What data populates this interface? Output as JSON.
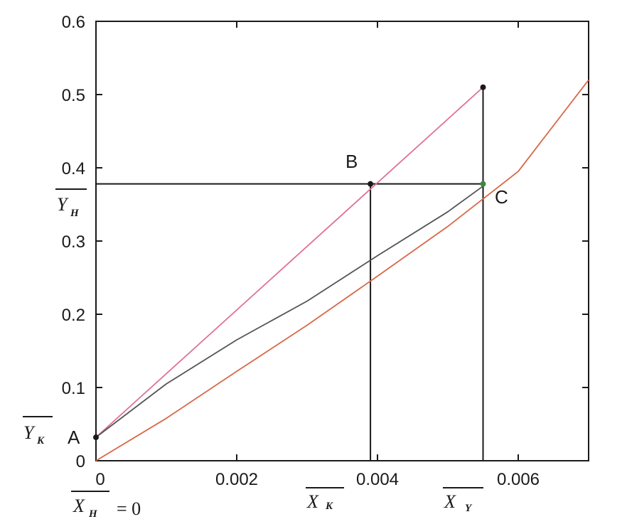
{
  "chart_data": {
    "type": "line",
    "title": "",
    "xlabel": "",
    "ylabel": "",
    "xlim": [
      0,
      0.007
    ],
    "ylim": [
      0,
      0.6
    ],
    "grid": false,
    "x_ticks": [
      {
        "value": 0,
        "label": "0"
      },
      {
        "value": 0.002,
        "label": "0.002"
      },
      {
        "value": 0.004,
        "label": "0.004"
      },
      {
        "value": 0.006,
        "label": "0.006"
      }
    ],
    "y_ticks": [
      {
        "value": 0,
        "label": "0"
      },
      {
        "value": 0.1,
        "label": "0.1"
      },
      {
        "value": 0.2,
        "label": "0.2"
      },
      {
        "value": 0.3,
        "label": "0.3"
      },
      {
        "value": 0.4,
        "label": "0.4"
      },
      {
        "value": 0.5,
        "label": "0.5"
      },
      {
        "value": 0.6,
        "label": "0.6"
      }
    ],
    "series": [
      {
        "color": "#e07098",
        "x": [
          0,
          0.0055
        ],
        "y": [
          0.032,
          0.51
        ]
      },
      {
        "color": "#555555",
        "x": [
          0,
          0.001,
          0.002,
          0.003,
          0.004,
          0.005,
          0.0055
        ],
        "y": [
          0.032,
          0.105,
          0.165,
          0.218,
          0.28,
          0.34,
          0.375
        ]
      },
      {
        "color": "#d86848",
        "x": [
          0,
          0.001,
          0.002,
          0.003,
          0.004,
          0.005,
          0.006,
          0.007
        ],
        "y": [
          0,
          0.058,
          0.122,
          0.185,
          0.252,
          0.32,
          0.395,
          0.52
        ]
      }
    ],
    "points": [
      {
        "label": "A",
        "x": 0,
        "y": 0.032,
        "color": "#1a1a1a"
      },
      {
        "label": "B",
        "x": 0.0039,
        "y": 0.378,
        "color": "#1a1a1a"
      },
      {
        "label": "C",
        "x": 0.0055,
        "y": 0.378,
        "color": "#3a8a3a"
      },
      {
        "label": "",
        "x": 0.0055,
        "y": 0.51,
        "color": "#1a1a1a"
      }
    ],
    "construction_lines": [
      {
        "x": [
          0,
          0.0055
        ],
        "y": [
          0.378,
          0.378
        ]
      },
      {
        "x": [
          0.0039,
          0.0039
        ],
        "y": [
          0.378,
          0
        ]
      },
      {
        "x": [
          0.0055,
          0.0055
        ],
        "y": [
          0.51,
          0
        ]
      }
    ],
    "annotations": {
      "y_h": {
        "main": "Y",
        "sub": "H",
        "value": 0.378
      },
      "y_k": {
        "main": "Y",
        "sub": "K",
        "value": 0.032
      },
      "x_h": {
        "main": "X",
        "sub": "H",
        "suffix": "= 0",
        "value": 0
      },
      "x_k": {
        "main": "X",
        "sub": "K",
        "value": 0.0039
      },
      "x_y": {
        "main": "X",
        "sub": "Y",
        "value": 0.0055
      }
    }
  }
}
